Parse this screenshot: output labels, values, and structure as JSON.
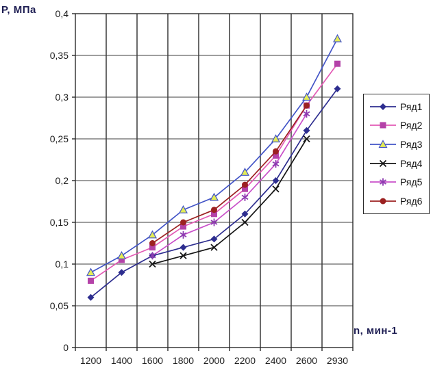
{
  "chart_data": {
    "type": "line",
    "title": "",
    "ylabel": "Р, МПа",
    "xlabel": "n, мин-1",
    "categories": [
      "1200",
      "1400",
      "1600",
      "1800",
      "2000",
      "2200",
      "2400",
      "2600",
      "2930"
    ],
    "y_tick_labels": [
      "0",
      "0,05",
      "0,1",
      "0,15",
      "0,2",
      "0,25",
      "0,3",
      "0,35",
      "0,4"
    ],
    "ylim": [
      0,
      0.4
    ],
    "y_step": 0.05,
    "grid": true,
    "legend_position": "right",
    "series": [
      {
        "name": "Ряд1",
        "marker": "diamond",
        "line_color": "#2d2d8f",
        "marker_color": "#2d2d8f",
        "values": [
          0.06,
          0.09,
          0.11,
          0.12,
          0.13,
          0.16,
          0.2,
          0.26,
          0.31
        ]
      },
      {
        "name": "Ряд2",
        "marker": "square",
        "line_color": "#e35ab5",
        "marker_color": "#b442a8",
        "values": [
          0.08,
          0.105,
          0.12,
          0.145,
          0.16,
          0.19,
          0.23,
          0.29,
          0.34
        ]
      },
      {
        "name": "Ряд3",
        "marker": "triangle",
        "line_color": "#4355c7",
        "marker_color": "#e4ec55",
        "values": [
          0.09,
          0.11,
          0.135,
          0.165,
          0.18,
          0.21,
          0.25,
          0.3,
          0.37
        ]
      },
      {
        "name": "Ряд4",
        "marker": "x",
        "line_color": "#151515",
        "marker_color": "#151515",
        "values": [
          null,
          null,
          0.1,
          0.11,
          0.12,
          0.15,
          0.19,
          0.25,
          null
        ]
      },
      {
        "name": "Ряд5",
        "marker": "star",
        "line_color": "#c94fc9",
        "marker_color": "#8d3bb0",
        "values": [
          null,
          null,
          0.11,
          0.135,
          0.15,
          0.18,
          0.22,
          0.28,
          null
        ]
      },
      {
        "name": "Ряд6",
        "marker": "circle",
        "line_color": "#9c2121",
        "marker_color": "#9c2121",
        "values": [
          null,
          null,
          0.125,
          0.15,
          0.165,
          0.195,
          0.235,
          0.29,
          null
        ]
      }
    ],
    "colors": {
      "axis_title": "#1d1d52",
      "tick_label": "#1c1c1c",
      "grid_vertical": "#6a6a6a",
      "grid_horizontal": "#3d3d3d",
      "plot_border": "#2a2a2a",
      "background": "#ffffff"
    }
  }
}
